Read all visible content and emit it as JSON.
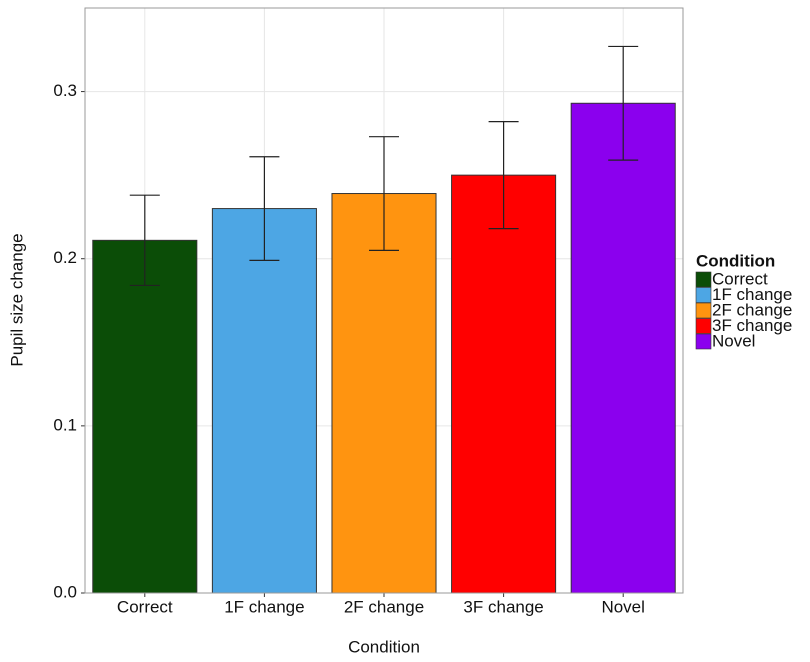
{
  "chart_data": {
    "type": "bar",
    "x_label": "Condition",
    "y_label": "Pupil size change",
    "categories": [
      "Correct",
      "1F change",
      "2F change",
      "3F change",
      "Novel"
    ],
    "values": [
      0.211,
      0.23,
      0.239,
      0.25,
      0.293
    ],
    "errors": [
      0.027,
      0.031,
      0.034,
      0.032,
      0.034
    ],
    "colors": [
      "#0b4d07",
      "#4da6e4",
      "#ff9410",
      "#ff0000",
      "#8b00ee"
    ],
    "ylim": [
      0,
      0.35
    ],
    "yticks": [
      {
        "value": 0,
        "label": "0.0"
      },
      0.1,
      0.2,
      0.3
    ],
    "grid": true,
    "legend": {
      "title": "Condition",
      "position": "right"
    }
  }
}
